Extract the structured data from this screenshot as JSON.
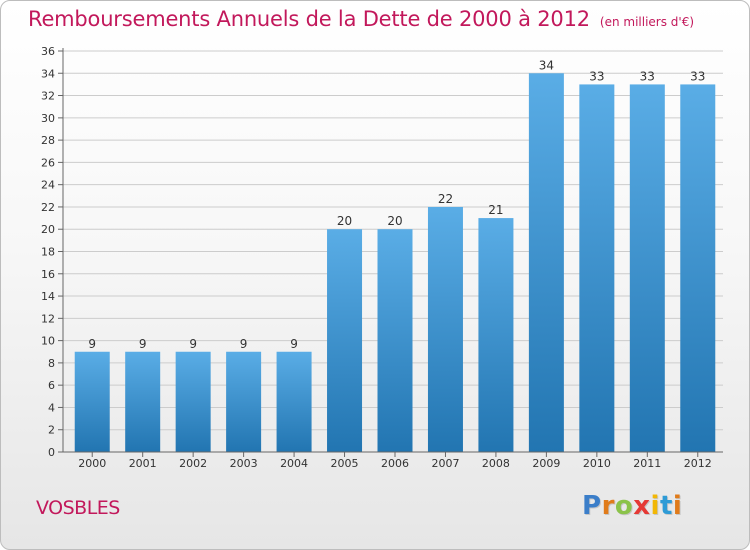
{
  "chart_data": {
    "type": "bar",
    "title": "Remboursements Annuels de la Dette de 2000 à 2012",
    "subtitle": "(en milliers d'€)",
    "categories": [
      "2000",
      "2001",
      "2002",
      "2003",
      "2004",
      "2005",
      "2006",
      "2007",
      "2008",
      "2009",
      "2010",
      "2011",
      "2012"
    ],
    "values": [
      9,
      9,
      9,
      9,
      9,
      20,
      20,
      22,
      21,
      34,
      33,
      33,
      33
    ],
    "ylim": [
      0,
      36
    ],
    "yticks": [
      0,
      2,
      4,
      6,
      8,
      10,
      12,
      14,
      16,
      18,
      20,
      22,
      24,
      26,
      28,
      30,
      32,
      34,
      36
    ],
    "grid": true,
    "bar_color_top": "#5aade6",
    "bar_color_bottom": "#2275b1"
  },
  "commune": "VOSBLES",
  "logo": {
    "letters": [
      "P",
      "r",
      "o",
      "x",
      "i",
      "t",
      "i"
    ],
    "colors": [
      "#3b7ec9",
      "#e07b1a",
      "#8bc34a",
      "#e53935",
      "#f2b705",
      "#2e9bd6",
      "#e07b1a"
    ]
  },
  "colors": {
    "title": "#c2185b",
    "grid": "#cccccc"
  }
}
